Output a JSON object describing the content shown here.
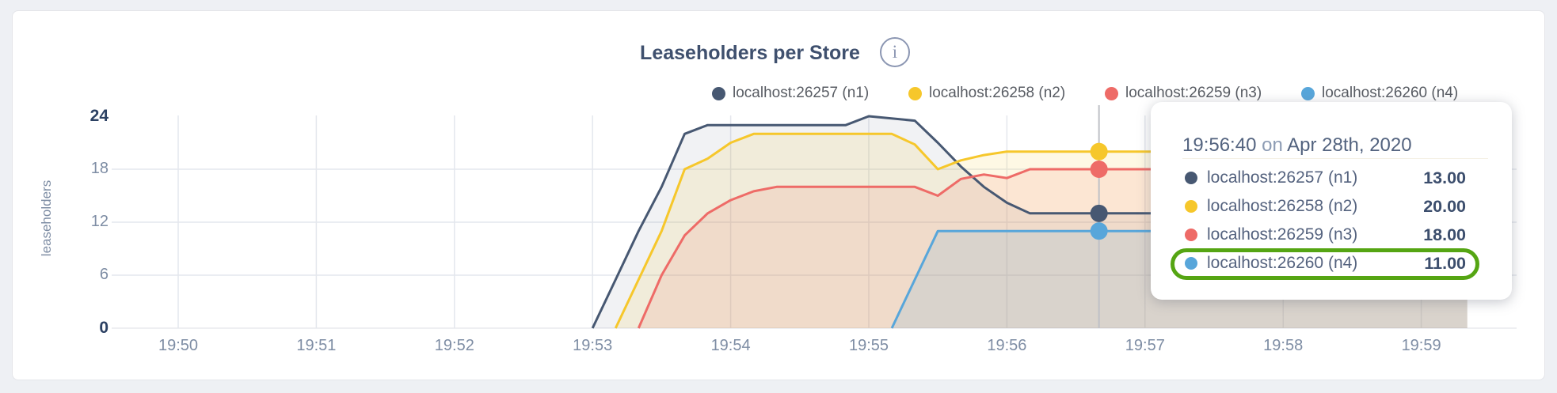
{
  "page": {
    "background": "#eef0f4",
    "card_background": "#ffffff"
  },
  "header": {
    "title": "Leaseholders per Store",
    "info_icon_glyph": "i"
  },
  "legend": {
    "items": [
      {
        "label": "localhost:26257 (n1)",
        "color": "#475872"
      },
      {
        "label": "localhost:26258 (n2)",
        "color": "#f6c72b"
      },
      {
        "label": "localhost:26259 (n3)",
        "color": "#ee6b67"
      },
      {
        "label": "localhost:26260 (n4)",
        "color": "#58a6da"
      }
    ]
  },
  "chart_data": {
    "type": "area",
    "title": "Leaseholders per Store",
    "xlabel": "",
    "ylabel": "leaseholders",
    "ylim": [
      0,
      24
    ],
    "y_ticks": [
      0,
      6,
      12,
      18,
      24
    ],
    "y_ticks_bold": [
      0,
      24
    ],
    "x_ticks": [
      "19:50",
      "19:51",
      "19:52",
      "19:53",
      "19:54",
      "19:55",
      "19:56",
      "19:57",
      "19:58",
      "19:59"
    ],
    "grid": true,
    "legend_position": "top-right",
    "x_end": "19:59:20",
    "series": [
      {
        "name": "localhost:26257 (n1)",
        "color": "#475872",
        "fill_opacity": 0.08,
        "points": [
          [
            "19:53:00",
            0
          ],
          [
            "19:53:10",
            5.5
          ],
          [
            "19:53:20",
            11
          ],
          [
            "19:53:30",
            16
          ],
          [
            "19:53:40",
            22
          ],
          [
            "19:53:50",
            23
          ],
          [
            "19:54:50",
            23
          ],
          [
            "19:55:00",
            24
          ],
          [
            "19:55:20",
            23.5
          ],
          [
            "19:55:30",
            21
          ],
          [
            "19:55:40",
            18.3
          ],
          [
            "19:55:50",
            16
          ],
          [
            "19:56:00",
            14.2
          ],
          [
            "19:56:10",
            13
          ],
          [
            "19:59:20",
            13
          ]
        ]
      },
      {
        "name": "localhost:26258 (n2)",
        "color": "#f6c72b",
        "fill_opacity": 0.13,
        "points": [
          [
            "19:53:10",
            0
          ],
          [
            "19:53:20",
            5.5
          ],
          [
            "19:53:30",
            11
          ],
          [
            "19:53:40",
            18
          ],
          [
            "19:53:50",
            19.2
          ],
          [
            "19:54:00",
            21
          ],
          [
            "19:54:10",
            22
          ],
          [
            "19:55:10",
            22
          ],
          [
            "19:55:20",
            20.8
          ],
          [
            "19:55:30",
            18
          ],
          [
            "19:55:40",
            19
          ],
          [
            "19:55:50",
            19.6
          ],
          [
            "19:56:00",
            20
          ],
          [
            "19:59:20",
            20
          ]
        ]
      },
      {
        "name": "localhost:26259 (n3)",
        "color": "#ee6b67",
        "fill_opacity": 0.13,
        "points": [
          [
            "19:53:20",
            0
          ],
          [
            "19:53:30",
            6
          ],
          [
            "19:53:40",
            10.5
          ],
          [
            "19:53:50",
            13
          ],
          [
            "19:54:00",
            14.5
          ],
          [
            "19:54:10",
            15.5
          ],
          [
            "19:54:20",
            16
          ],
          [
            "19:55:20",
            16
          ],
          [
            "19:55:30",
            15
          ],
          [
            "19:55:40",
            16.9
          ],
          [
            "19:55:50",
            17.4
          ],
          [
            "19:56:00",
            17
          ],
          [
            "19:56:10",
            18
          ],
          [
            "19:59:20",
            18
          ]
        ]
      },
      {
        "name": "localhost:26260 (n4)",
        "color": "#58a6da",
        "fill_opacity": 0.15,
        "points": [
          [
            "19:55:10",
            0
          ],
          [
            "19:55:20",
            5.5
          ],
          [
            "19:55:30",
            11
          ],
          [
            "19:59:20",
            11
          ]
        ]
      }
    ],
    "hover": {
      "time": "19:56:40",
      "values": [
        13,
        20,
        18,
        11
      ],
      "guideline_color": "#bfc1c6"
    }
  },
  "tooltip": {
    "time": "19:56:40",
    "on_word": "on",
    "date": "Apr 28th, 2020",
    "rows": [
      {
        "label": "localhost:26257 (n1)",
        "value": "13.00",
        "color": "#475872"
      },
      {
        "label": "localhost:26258 (n2)",
        "value": "20.00",
        "color": "#f6c72b"
      },
      {
        "label": "localhost:26259 (n3)",
        "value": "18.00",
        "color": "#ee6b67"
      },
      {
        "label": "localhost:26260 (n4)",
        "value": "11.00",
        "color": "#58a6da"
      }
    ],
    "highlighted_row_index": 3,
    "highlight_color": "#55a513"
  },
  "axes": {
    "y_axis_title": "leaseholders",
    "grid_color": "#e4e7ed",
    "tick_color": "#7e8da4",
    "bold_tick_color": "#2c4163"
  }
}
